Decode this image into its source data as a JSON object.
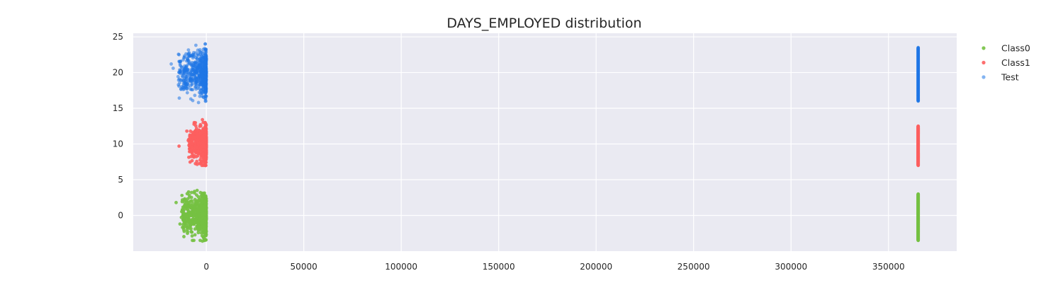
{
  "chart_data": {
    "type": "scatter",
    "title": "DAYS_EMPLOYED distribution",
    "xlabel": "",
    "ylabel": "",
    "xlim": [
      -37500,
      385000
    ],
    "ylim": [
      -5,
      25.5
    ],
    "xticks": [
      0,
      50000,
      100000,
      150000,
      200000,
      250000,
      300000,
      350000
    ],
    "xtick_labels": [
      "0",
      "50000",
      "100000",
      "150000",
      "200000",
      "250000",
      "300000",
      "350000"
    ],
    "yticks": [
      0,
      5,
      10,
      15,
      20,
      25
    ],
    "ytick_labels": [
      "0",
      "5",
      "10",
      "15",
      "20",
      "25"
    ],
    "grid": true,
    "legend_position": "outside-right-top",
    "background_color": "#eaeaf2",
    "series": [
      {
        "name": "Class0",
        "color": "#76c143",
        "clusters": [
          {
            "x_range": [
              -17000,
              0
            ],
            "y_center": 0,
            "y_spread": 3.5
          },
          {
            "x_value": 365243,
            "y_range": [
              -3.5,
              3
            ]
          }
        ],
        "outliers": [
          [
            -15500,
            1.8
          ],
          [
            -12500,
            2.8
          ],
          [
            -13500,
            -1.2
          ],
          [
            -2000,
            -3.6
          ],
          [
            -3000,
            3.2
          ]
        ]
      },
      {
        "name": "Class1",
        "color": "#fd5f5f",
        "clusters": [
          {
            "x_range": [
              -12000,
              0
            ],
            "y_center": 10,
            "y_spread": 3
          },
          {
            "x_value": 365243,
            "y_range": [
              7,
              12.5
            ]
          }
        ],
        "outliers": [
          [
            -14000,
            9.7
          ],
          [
            -10000,
            11.8
          ],
          [
            -2000,
            13.4
          ],
          [
            -1500,
            7
          ]
        ]
      },
      {
        "name": "Test",
        "color": "#1f77e5",
        "clusters": [
          {
            "x_range": [
              -19000,
              0
            ],
            "y_center": 20,
            "y_spread": 4
          },
          {
            "x_value": 365243,
            "y_range": [
              16,
              23.5
            ]
          }
        ],
        "outliers": [
          [
            -18000,
            21.2
          ],
          [
            -17000,
            20.6
          ],
          [
            -13500,
            21.5
          ],
          [
            -4000,
            15.8
          ],
          [
            -500,
            24
          ],
          [
            -14000,
            22.5
          ]
        ]
      }
    ]
  }
}
